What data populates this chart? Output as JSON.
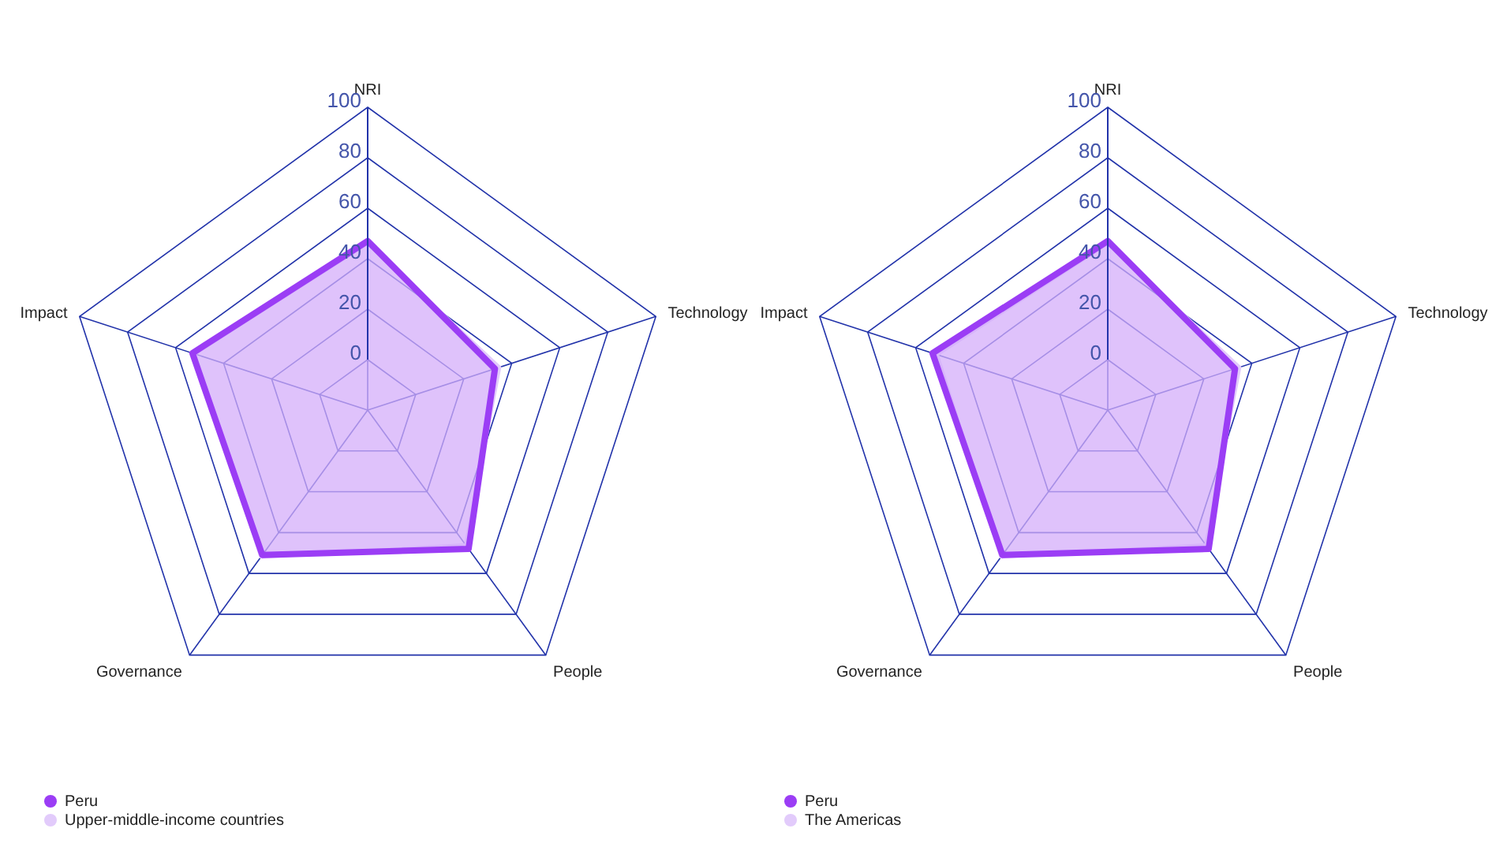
{
  "chart_data": [
    {
      "type": "radar",
      "categories": [
        "NRI",
        "Technology",
        "People",
        "Governance",
        "Impact"
      ],
      "ylim": [
        -20,
        100
      ],
      "yticks": [
        0,
        20,
        40,
        60,
        80,
        100
      ],
      "legend": "bottom left",
      "series": [
        {
          "name": "Upper-middle-income countries",
          "color": "#e2cbfb",
          "values": [
            46,
            35,
            46,
            52,
            52
          ]
        },
        {
          "name": "Peru",
          "color": "#9b3df5",
          "values": [
            47,
            33,
            48,
            51,
            53
          ]
        }
      ]
    },
    {
      "type": "radar",
      "categories": [
        "NRI",
        "Technology",
        "People",
        "Governance",
        "Impact"
      ],
      "ylim": [
        -20,
        100
      ],
      "yticks": [
        0,
        20,
        40,
        60,
        80,
        100
      ],
      "legend": "bottom left",
      "series": [
        {
          "name": "The Americas",
          "color": "#e2cbfb",
          "values": [
            46,
            35,
            46,
            52,
            51
          ]
        },
        {
          "name": "Peru",
          "color": "#9b3df5",
          "values": [
            47,
            33,
            48,
            51,
            53
          ]
        }
      ]
    }
  ]
}
